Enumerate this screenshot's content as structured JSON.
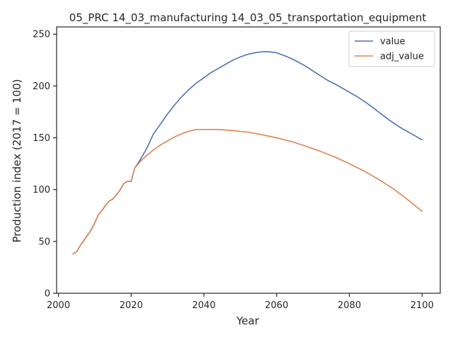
{
  "chart_data": {
    "type": "line",
    "title": "05_PRC 14_03_manufacturing 14_03_05_transportation_equipment",
    "xlabel": "Year",
    "ylabel": "Production index (2017 = 100)",
    "xlim": [
      1999.5,
      2105
    ],
    "ylim": [
      0,
      257
    ],
    "xticks": [
      2000,
      2020,
      2040,
      2060,
      2080,
      2100
    ],
    "yticks": [
      0,
      50,
      100,
      150,
      200,
      250
    ],
    "grid": false,
    "legend": "top-right",
    "series": [
      {
        "name": "value",
        "color": "#4c72b0",
        "x": [
          2004,
          2005,
          2006,
          2007,
          2008,
          2009,
          2010,
          2011,
          2012,
          2013,
          2014,
          2015,
          2016,
          2017,
          2018,
          2019,
          2020,
          2021,
          2022,
          2023,
          2024,
          2025,
          2026,
          2027,
          2028,
          2030,
          2032,
          2034,
          2036,
          2038,
          2040,
          2042,
          2044,
          2046,
          2048,
          2050,
          2052,
          2054,
          2056,
          2058,
          2060,
          2062,
          2064,
          2066,
          2068,
          2070,
          2072,
          2074,
          2076,
          2078,
          2080,
          2082,
          2085,
          2088,
          2091,
          2094,
          2097,
          2100
        ],
        "y": [
          38,
          40,
          46,
          51,
          56,
          61,
          68,
          76,
          80,
          85,
          89,
          91,
          95,
          100,
          106,
          108,
          108,
          121,
          126,
          132,
          138,
          145,
          153,
          158,
          163,
          173,
          182,
          190,
          197,
          203,
          208,
          213,
          217,
          221,
          225,
          228,
          230.5,
          232,
          233,
          233,
          232,
          229.5,
          226.5,
          223,
          219,
          214.5,
          210,
          205.5,
          202,
          198,
          194,
          190,
          183,
          175,
          167,
          160,
          154,
          148
        ]
      },
      {
        "name": "adj_value",
        "color": "#dd8452",
        "x": [
          2004,
          2005,
          2006,
          2007,
          2008,
          2009,
          2010,
          2011,
          2012,
          2013,
          2014,
          2015,
          2016,
          2017,
          2018,
          2019,
          2020,
          2021,
          2022,
          2023,
          2024,
          2026,
          2028,
          2030,
          2032,
          2034,
          2036,
          2038,
          2040,
          2044,
          2048,
          2052,
          2056,
          2060,
          2064,
          2068,
          2072,
          2076,
          2080,
          2084,
          2088,
          2092,
          2096,
          2100
        ],
        "y": [
          38,
          40,
          46,
          51,
          56,
          61,
          68,
          76,
          80,
          85,
          89,
          91,
          95,
          100,
          106,
          108,
          108,
          121,
          125,
          129,
          132,
          138,
          143,
          147,
          151,
          154,
          156.5,
          158,
          158,
          158,
          157,
          155.5,
          153,
          150,
          146.5,
          142,
          137,
          131.5,
          125,
          118,
          110,
          101,
          90.5,
          79
        ]
      }
    ]
  }
}
